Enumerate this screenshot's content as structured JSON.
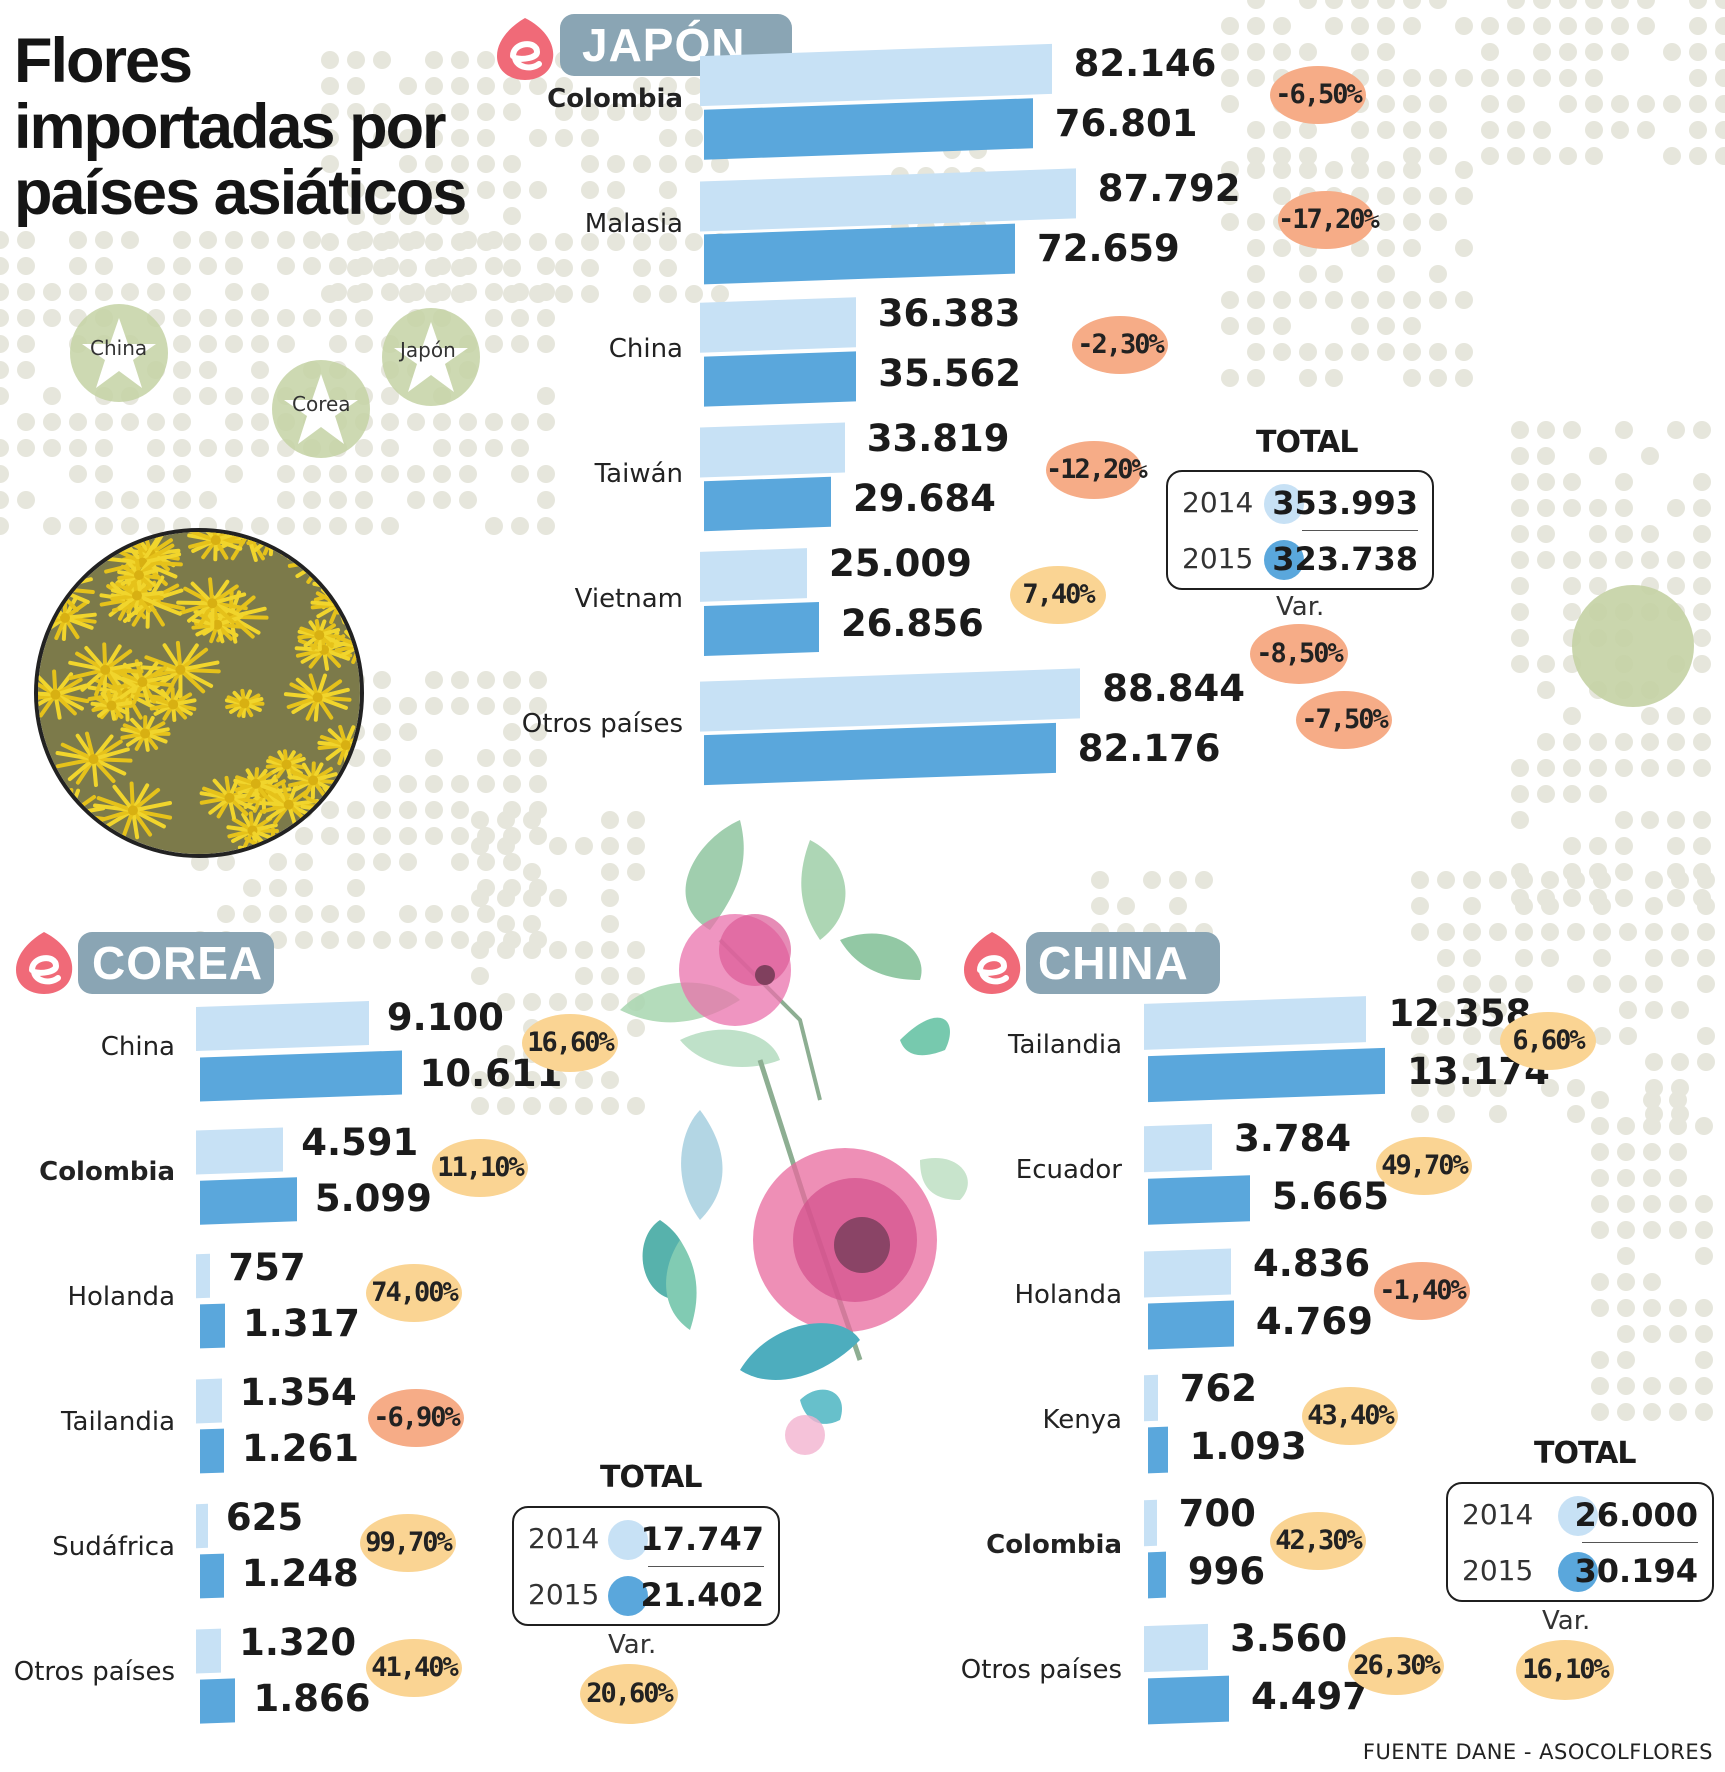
{
  "title_lines": [
    "Flores",
    "importadas por",
    "países asiáticos"
  ],
  "source": "FUENTE DANE - ASOCOLFLORES",
  "colors": {
    "y2014": "#c7e1f5",
    "y2015": "#5aa7dc",
    "negative_badge": "#f6ac87",
    "positive_badge": "#fad493",
    "tag": "#8aa5b4",
    "logo": "#f06a78"
  },
  "map_labels": {
    "china": "China",
    "corea": "Corea",
    "japon": "Japón"
  },
  "var_label": "Var.",
  "total_label": "TOTAL",
  "chart_data": [
    {
      "type": "bar",
      "title": "JAPÓN",
      "orientation": "horizontal",
      "series_years": [
        "2014",
        "2015"
      ],
      "categories": [
        "Colombia",
        "Malasia",
        "China",
        "Taiwán",
        "Vietnam",
        "Otros países"
      ],
      "values_2014": [
        82146,
        87792,
        36383,
        33819,
        25009,
        88844
      ],
      "values_2015": [
        76801,
        72659,
        35562,
        29684,
        26856,
        82176
      ],
      "labels_2014": [
        "82.146",
        "87.792",
        "36.383",
        "33.819",
        "25.009",
        "88.844"
      ],
      "labels_2015": [
        "76.801",
        "72.659",
        "35.562",
        "29.684",
        "26.856",
        "82.176"
      ],
      "variation": [
        "-6,50%",
        "-17,20%",
        "-2,30%",
        "-12,20%",
        "7,40%",
        "-7,50%"
      ],
      "total": {
        "y2014_label": "2014",
        "y2014": "353.993",
        "y2015_label": "2015",
        "y2015": "323.738",
        "var": "-8,50%"
      }
    },
    {
      "type": "bar",
      "title": "COREA",
      "orientation": "horizontal",
      "series_years": [
        "2014",
        "2015"
      ],
      "categories": [
        "China",
        "Colombia",
        "Holanda",
        "Tailandia",
        "Sudáfrica",
        "Otros países"
      ],
      "values_2014": [
        9100,
        4591,
        757,
        1354,
        625,
        1320
      ],
      "values_2015": [
        10611,
        5099,
        1317,
        1261,
        1248,
        1866
      ],
      "labels_2014": [
        "9.100",
        "4.591",
        "757",
        "1.354",
        "625",
        "1.320"
      ],
      "labels_2015": [
        "10.611",
        "5.099",
        "1.317",
        "1.261",
        "1.248",
        "1.866"
      ],
      "variation": [
        "16,60%",
        "11,10%",
        "74,00%",
        "-6,90%",
        "99,70%",
        "41,40%"
      ],
      "total": {
        "y2014_label": "2014",
        "y2014": "17.747",
        "y2015_label": "2015",
        "y2015": "21.402",
        "var": "20,60%"
      }
    },
    {
      "type": "bar",
      "title": "CHINA",
      "orientation": "horizontal",
      "series_years": [
        "2014",
        "2015"
      ],
      "categories": [
        "Tailandia",
        "Ecuador",
        "Holanda",
        "Kenya",
        "Colombia",
        "Otros países"
      ],
      "values_2014": [
        12358,
        3784,
        4836,
        762,
        700,
        3560
      ],
      "values_2015": [
        13174,
        5665,
        4769,
        1093,
        996,
        4497
      ],
      "labels_2014": [
        "12.358",
        "3.784",
        "4.836",
        "762",
        "700",
        "3.560"
      ],
      "labels_2015": [
        "13.174",
        "5.665",
        "4.769",
        "1.093",
        "996",
        "4.497"
      ],
      "variation": [
        "6,60%",
        "49,70%",
        "-1,40%",
        "43,40%",
        "42,30%",
        "26,30%"
      ],
      "total": {
        "y2014_label": "2014",
        "y2014": "26.000",
        "y2015_label": "2015",
        "y2015": "30.194",
        "var": "16,10%"
      }
    }
  ]
}
